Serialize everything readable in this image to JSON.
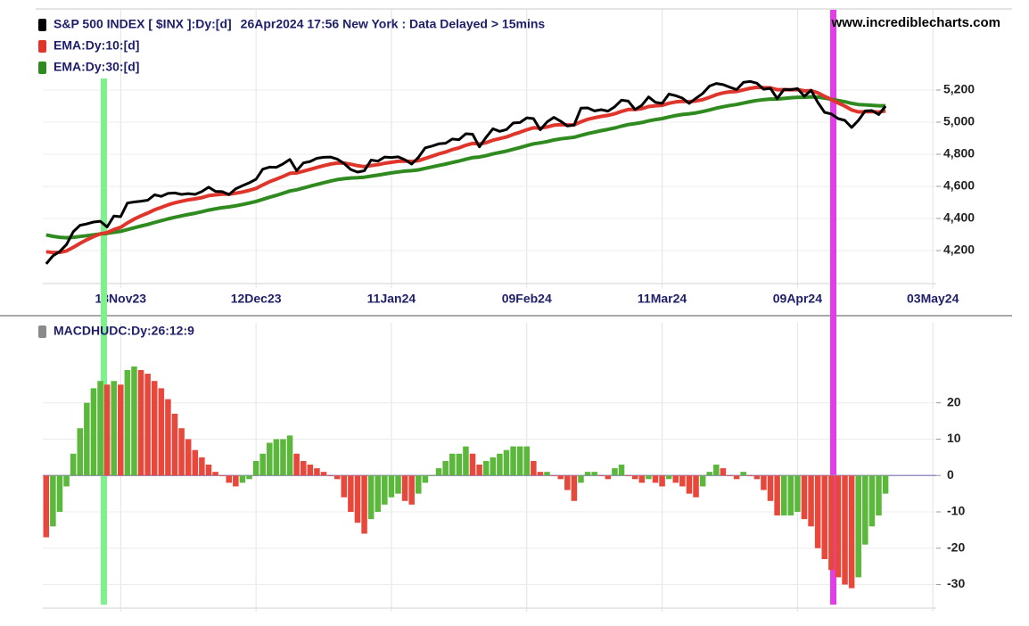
{
  "chart_data": [
    {
      "type": "line",
      "source": "www.incrediblecharts.com",
      "subtitle": "26Apr2024 17:56 New York : Data Delayed > 15mins",
      "xlim": [
        -0.5,
        131.5
      ],
      "xticks": [
        {
          "value": 11,
          "label": "13Nov23"
        },
        {
          "value": 31,
          "label": "12Dec23"
        },
        {
          "value": 51,
          "label": "11Jan24"
        },
        {
          "value": 71,
          "label": "09Feb24"
        },
        {
          "value": 91,
          "label": "11Mar24"
        },
        {
          "value": 111,
          "label": "09Apr24"
        },
        {
          "value": 131,
          "label": "03May24"
        }
      ],
      "ylim": [
        4000,
        5700
      ],
      "yticks": [
        {
          "value": 4200,
          "label": "4,200"
        },
        {
          "value": 4400,
          "label": "4,400"
        },
        {
          "value": 4600,
          "label": "4,600"
        },
        {
          "value": 4800,
          "label": "4,800"
        },
        {
          "value": 5000,
          "label": "5,000"
        },
        {
          "value": 5200,
          "label": "5,200"
        }
      ],
      "grid": true,
      "series": [
        {
          "name": "S&P 500 INDEX [ $INX ]:Dy:[d]",
          "color": "#000000",
          "width": 3,
          "values": [
            4117,
            4167,
            4194,
            4238,
            4318,
            4358,
            4366,
            4378,
            4383,
            4347,
            4415,
            4411,
            4496,
            4503,
            4508,
            4514,
            4547,
            4538,
            4556,
            4559,
            4550,
            4555,
            4550,
            4568,
            4595,
            4569,
            4567,
            4549,
            4585,
            4604,
            4622,
            4644,
            4707,
            4720,
            4719,
            4740,
            4768,
            4698,
            4746,
            4755,
            4775,
            4781,
            4783,
            4770,
            4743,
            4705,
            4689,
            4697,
            4764,
            4757,
            4783,
            4780,
            4784,
            4766,
            4739,
            4781,
            4840,
            4851,
            4865,
            4869,
            4895,
            4891,
            4928,
            4925,
            4846,
            4906,
            4959,
            4943,
            4954,
            4995,
            4998,
            5027,
            5022,
            4953,
            5001,
            5030,
            5006,
            4976,
            4982,
            5087,
            5089,
            5070,
            5078,
            5069,
            5096,
            5137,
            5131,
            5079,
            5105,
            5157,
            5124,
            5117,
            5175,
            5165,
            5150,
            5117,
            5149,
            5179,
            5225,
            5241,
            5234,
            5218,
            5203,
            5248,
            5254,
            5243,
            5205,
            5211,
            5147,
            5204,
            5202,
            5209,
            5161,
            5199,
            5123,
            5061,
            5051,
            5022,
            5011,
            4967,
            5011,
            5070,
            5072,
            5048,
            5100
          ]
        },
        {
          "name": "EMA:Dy:10:[d]",
          "color": "#e0352b",
          "width": 4,
          "values": [
            4193,
            4188,
            4189,
            4198,
            4220,
            4245,
            4267,
            4287,
            4304,
            4312,
            4331,
            4345,
            4372,
            4396,
            4416,
            4434,
            4454,
            4469,
            4485,
            4498,
            4507,
            4516,
            4522,
            4530,
            4542,
            4547,
            4551,
            4551,
            4557,
            4565,
            4575,
            4587,
            4609,
            4629,
            4645,
            4662,
            4681,
            4684,
            4695,
            4706,
            4718,
            4729,
            4739,
            4745,
            4745,
            4738,
            4729,
            4723,
            4730,
            4735,
            4744,
            4750,
            4756,
            4758,
            4755,
            4760,
            4774,
            4788,
            4802,
            4814,
            4829,
            4840,
            4856,
            4868,
            4864,
            4872,
            4888,
            4898,
            4908,
            4924,
            4937,
            4953,
            4965,
            4963,
            4970,
            4981,
            4985,
            4983,
            4983,
            5002,
            5018,
            5027,
            5036,
            5042,
            5052,
            5067,
            5079,
            5079,
            5084,
            5097,
            5102,
            5105,
            5118,
            5126,
            5130,
            5128,
            5132,
            5140,
            5155,
            5171,
            5182,
            5189,
            5191,
            5201,
            5211,
            5217,
            5215,
            5214,
            5202,
            5202,
            5202,
            5203,
            5195,
            5196,
            5183,
            5161,
            5141,
            5120,
            5100,
            5076,
            5064,
            5065,
            5066,
            5063,
            5070
          ]
        },
        {
          "name": "EMA:Dy:30:[d]",
          "color": "#2f8a1f",
          "width": 4,
          "values": [
            4298,
            4289,
            4283,
            4280,
            4283,
            4288,
            4293,
            4298,
            4304,
            4307,
            4314,
            4320,
            4331,
            4342,
            4353,
            4363,
            4375,
            4386,
            4397,
            4407,
            4416,
            4425,
            4433,
            4442,
            4452,
            4460,
            4467,
            4472,
            4479,
            4487,
            4496,
            4506,
            4519,
            4532,
            4544,
            4557,
            4571,
            4579,
            4590,
            4601,
            4612,
            4623,
            4633,
            4642,
            4648,
            4652,
            4654,
            4657,
            4664,
            4670,
            4677,
            4684,
            4690,
            4695,
            4698,
            4703,
            4712,
            4721,
            4730,
            4739,
            4749,
            4758,
            4769,
            4779,
            4783,
            4791,
            4802,
            4811,
            4820,
            4831,
            4842,
            4854,
            4865,
            4871,
            4879,
            4889,
            4896,
            4901,
            4906,
            4918,
            4929,
            4938,
            4947,
            4955,
            4964,
            4975,
            4985,
            4991,
            4998,
            5008,
            5016,
            5022,
            5032,
            5041,
            5048,
            5052,
            5058,
            5066,
            5076,
            5087,
            5096,
            5104,
            5110,
            5119,
            5128,
            5135,
            5140,
            5144,
            5144,
            5148,
            5152,
            5155,
            5155,
            5158,
            5156,
            5150,
            5143,
            5135,
            5127,
            5117,
            5110,
            5108,
            5105,
            5102,
            5102
          ]
        }
      ]
    },
    {
      "type": "bar",
      "xlim": [
        -0.5,
        131.5
      ],
      "ylim": [
        -36,
        42
      ],
      "yticks": [
        -30,
        -20,
        -10,
        0,
        10,
        20
      ],
      "grid": true,
      "up_color": "#5cb83c",
      "down_color": "#e8483c",
      "series": [
        {
          "name": "MACDHUDC:Dy:26:12:9",
          "color": "#8a8a8a",
          "values": [
            -17,
            -14,
            -10,
            -3,
            6,
            13,
            20,
            24,
            26,
            25,
            26,
            25,
            29,
            30,
            29,
            28,
            26,
            24,
            21,
            17,
            13,
            10,
            7,
            5,
            3,
            1,
            0,
            -2,
            -3,
            -2,
            -1,
            4,
            6,
            9,
            10,
            10,
            11,
            6,
            4,
            3,
            2,
            1,
            0,
            -1,
            -6,
            -10,
            -13,
            -16,
            -12,
            -10,
            -8,
            -6,
            -5,
            -7,
            -8,
            -5,
            -2,
            0,
            2,
            4,
            6,
            6,
            8,
            6,
            3,
            4,
            5,
            6,
            7,
            8,
            8,
            8,
            4,
            1,
            1,
            0,
            -1,
            -4,
            -7,
            -2,
            1,
            1,
            0,
            -1,
            2,
            3,
            0,
            -1,
            -2,
            -1,
            -2,
            -3,
            -1,
            -2,
            -3,
            -5,
            -6,
            -3,
            1,
            3,
            2,
            0,
            -1,
            1,
            0,
            -1,
            -4,
            -7,
            -11,
            -11,
            -11,
            -10,
            -12,
            -14,
            -20,
            -23,
            -26,
            -28,
            -30,
            -31,
            -28,
            -19,
            -14,
            -11,
            -5
          ]
        }
      ]
    }
  ]
}
